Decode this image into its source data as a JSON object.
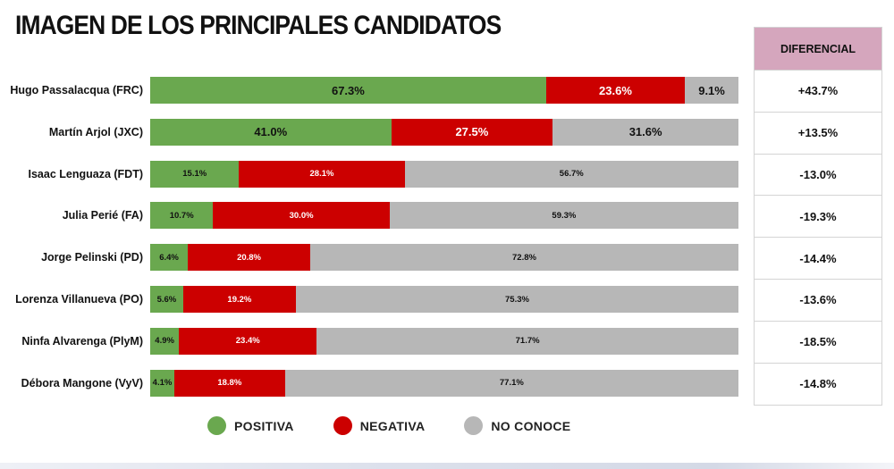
{
  "colors": {
    "positive": "#6aa84f",
    "negative": "#cc0000",
    "no_conoce": "#b7b7b7",
    "header_bg": "#d5a6bd"
  },
  "chart_data": {
    "type": "bar",
    "orientation": "horizontal",
    "stacked": true,
    "title": "IMAGEN DE LOS PRINCIPALES CANDIDATOS",
    "categories": [
      "Hugo Passalacqua (FRC)",
      "Martín Arjol (JXC)",
      "Isaac Lenguaza (FDT)",
      "Julia Perié (FA)",
      "Jorge Pelinski (PD)",
      "Lorenza Villanueva (PO)",
      "Ninfa Alvarenga (PlyM)",
      "Débora Mangone (VyV)"
    ],
    "series": [
      {
        "name": "POSITIVA",
        "values": [
          67.3,
          41.0,
          15.1,
          10.7,
          6.4,
          5.6,
          4.9,
          4.1
        ],
        "labels": [
          "67.3%",
          "41.0%",
          "15.1%",
          "10.7%",
          "6.4%",
          "5.6%",
          "4.9%",
          "4.1%"
        ]
      },
      {
        "name": "NEGATIVA",
        "values": [
          23.6,
          27.5,
          28.1,
          30.0,
          20.8,
          19.2,
          23.4,
          18.8
        ],
        "labels": [
          "23.6%",
          "27.5%",
          "28.1%",
          "30.0%",
          "20.8%",
          "19.2%",
          "23.4%",
          "18.8%"
        ]
      },
      {
        "name": "NO CONOCE",
        "values": [
          9.1,
          31.6,
          56.7,
          59.3,
          72.8,
          75.3,
          71.7,
          77.1
        ],
        "labels": [
          "9.1%",
          "31.6%",
          "56.7%",
          "59.3%",
          "72.8%",
          "75.3%",
          "71.7%",
          "77.1%"
        ]
      }
    ],
    "xlim": [
      0,
      100
    ],
    "legend": {
      "position": "bottom",
      "items": [
        "POSITIVA",
        "NEGATIVA",
        "NO CONOCE"
      ]
    },
    "grid": false
  },
  "table": {
    "header": "DIFERENCIAL",
    "values": [
      "+43.7%",
      "+13.5%",
      "-13.0%",
      "-19.3%",
      "-14.4%",
      "-13.6%",
      "-18.5%",
      "-14.8%"
    ]
  }
}
